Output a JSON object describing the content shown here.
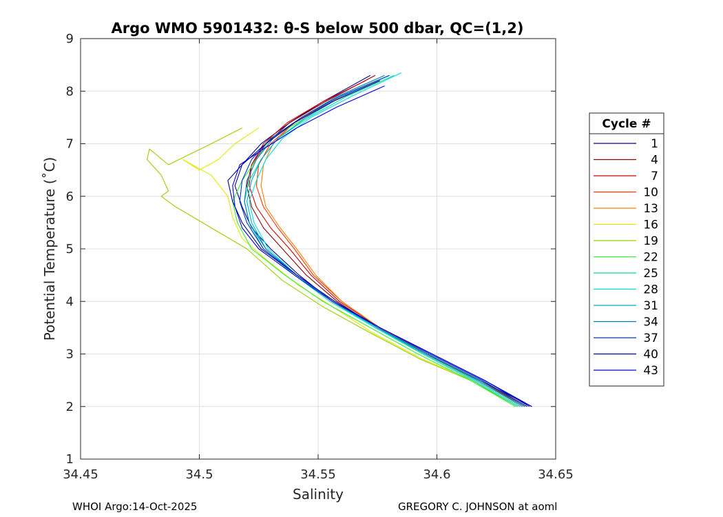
{
  "chart_data": {
    "type": "line",
    "title": "Argo WMO 5901432: θ-S below 500 dbar,  QC=(1,2)",
    "xlabel": "Salinity",
    "ylabel": "Potential Temperature (˚C)",
    "xlim": [
      34.45,
      34.65
    ],
    "ylim": [
      1,
      9
    ],
    "x_ticks": [
      "34.45",
      "34.5",
      "34.55",
      "34.6",
      "34.65"
    ],
    "y_ticks": [
      "1",
      "2",
      "3",
      "4",
      "5",
      "6",
      "7",
      "8",
      "9"
    ],
    "grid": true,
    "legend": {
      "title": "Cycle #",
      "position": "outside-right",
      "entries": [
        {
          "label": "1",
          "color": "#00008f"
        },
        {
          "label": "4",
          "color": "#8b0000"
        },
        {
          "label": "7",
          "color": "#cc0000"
        },
        {
          "label": "10",
          "color": "#ff3300"
        },
        {
          "label": "13",
          "color": "#ff7f00"
        },
        {
          "label": "16",
          "color": "#e6e600"
        },
        {
          "label": "19",
          "color": "#9acd00"
        },
        {
          "label": "22",
          "color": "#33ee33"
        },
        {
          "label": "25",
          "color": "#00ddaa"
        },
        {
          "label": "28",
          "color": "#00dddd"
        },
        {
          "label": "31",
          "color": "#00aacc"
        },
        {
          "label": "34",
          "color": "#0077bb"
        },
        {
          "label": "37",
          "color": "#0033cc"
        },
        {
          "label": "40",
          "color": "#000099"
        },
        {
          "label": "43",
          "color": "#0000dd"
        }
      ]
    },
    "series": [
      {
        "name": "1",
        "color": "#00008f",
        "points": [
          [
            34.572,
            8.3
          ],
          [
            34.552,
            7.8
          ],
          [
            34.538,
            7.4
          ],
          [
            34.526,
            7.0
          ],
          [
            34.518,
            6.6
          ],
          [
            34.515,
            6.2
          ],
          [
            34.518,
            5.8
          ],
          [
            34.522,
            5.4
          ],
          [
            34.53,
            5.0
          ],
          [
            34.542,
            4.5
          ],
          [
            34.556,
            4.0
          ],
          [
            34.574,
            3.5
          ],
          [
            34.595,
            3.0
          ],
          [
            34.618,
            2.5
          ],
          [
            34.64,
            2.0
          ]
        ]
      },
      {
        "name": "4",
        "color": "#8b0000",
        "points": [
          [
            34.574,
            8.3
          ],
          [
            34.553,
            7.8
          ],
          [
            34.538,
            7.4
          ],
          [
            34.528,
            7.0
          ],
          [
            34.522,
            6.6
          ],
          [
            34.52,
            6.2
          ],
          [
            34.522,
            5.8
          ],
          [
            34.527,
            5.4
          ],
          [
            34.535,
            5.0
          ],
          [
            34.545,
            4.5
          ],
          [
            34.558,
            4.0
          ],
          [
            34.575,
            3.5
          ],
          [
            34.596,
            3.0
          ],
          [
            34.618,
            2.5
          ],
          [
            34.638,
            2.0
          ]
        ]
      },
      {
        "name": "7",
        "color": "#cc0000",
        "points": [
          [
            34.57,
            8.2
          ],
          [
            34.552,
            7.8
          ],
          [
            34.537,
            7.4
          ],
          [
            34.527,
            7.0
          ],
          [
            34.522,
            6.6
          ],
          [
            34.521,
            6.2
          ],
          [
            34.524,
            5.8
          ],
          [
            34.53,
            5.4
          ],
          [
            34.538,
            5.0
          ],
          [
            34.547,
            4.5
          ],
          [
            34.559,
            4.0
          ],
          [
            34.576,
            3.5
          ],
          [
            34.596,
            3.0
          ],
          [
            34.617,
            2.5
          ],
          [
            34.637,
            2.0
          ]
        ]
      },
      {
        "name": "10",
        "color": "#ff3300",
        "points": [
          [
            34.576,
            8.2
          ],
          [
            34.556,
            7.8
          ],
          [
            34.54,
            7.4
          ],
          [
            34.53,
            7.0
          ],
          [
            34.525,
            6.6
          ],
          [
            34.524,
            6.2
          ],
          [
            34.527,
            5.8
          ],
          [
            34.533,
            5.4
          ],
          [
            34.54,
            5.0
          ],
          [
            34.548,
            4.5
          ],
          [
            34.56,
            4.0
          ],
          [
            34.576,
            3.5
          ],
          [
            34.596,
            3.0
          ],
          [
            34.617,
            2.5
          ],
          [
            34.636,
            2.0
          ]
        ]
      },
      {
        "name": "13",
        "color": "#ff7f00",
        "points": [
          [
            34.575,
            8.2
          ],
          [
            34.555,
            7.8
          ],
          [
            34.54,
            7.4
          ],
          [
            34.531,
            7.0
          ],
          [
            34.527,
            6.6
          ],
          [
            34.526,
            6.2
          ],
          [
            34.528,
            5.8
          ],
          [
            34.534,
            5.4
          ],
          [
            34.541,
            5.0
          ],
          [
            34.549,
            4.5
          ],
          [
            34.56,
            4.0
          ],
          [
            34.576,
            3.5
          ],
          [
            34.595,
            3.0
          ],
          [
            34.616,
            2.5
          ],
          [
            34.635,
            2.0
          ]
        ]
      },
      {
        "name": "16",
        "color": "#e6e600",
        "points": [
          [
            34.525,
            7.3
          ],
          [
            34.515,
            7.0
          ],
          [
            34.508,
            6.7
          ],
          [
            34.5,
            6.5
          ],
          [
            34.493,
            6.7
          ],
          [
            34.505,
            6.4
          ],
          [
            34.512,
            6.0
          ],
          [
            34.514,
            5.6
          ],
          [
            34.518,
            5.2
          ],
          [
            34.528,
            4.8
          ],
          [
            34.542,
            4.3
          ],
          [
            34.556,
            3.9
          ],
          [
            34.573,
            3.4
          ],
          [
            34.594,
            2.9
          ],
          [
            34.615,
            2.5
          ],
          [
            34.634,
            2.0
          ]
        ]
      },
      {
        "name": "19",
        "color": "#9acd00",
        "points": [
          [
            34.518,
            7.3
          ],
          [
            34.505,
            7.0
          ],
          [
            34.487,
            6.6
          ],
          [
            34.479,
            6.9
          ],
          [
            34.478,
            6.7
          ],
          [
            34.484,
            6.4
          ],
          [
            34.487,
            6.1
          ],
          [
            34.484,
            6.0
          ],
          [
            34.49,
            5.8
          ],
          [
            34.505,
            5.4
          ],
          [
            34.52,
            5.0
          ],
          [
            34.535,
            4.4
          ],
          [
            34.552,
            3.9
          ],
          [
            34.572,
            3.4
          ],
          [
            34.593,
            2.9
          ],
          [
            34.614,
            2.5
          ],
          [
            34.634,
            2.0
          ]
        ]
      },
      {
        "name": "22",
        "color": "#33ee33",
        "points": [
          [
            34.58,
            8.3
          ],
          [
            34.56,
            7.9
          ],
          [
            34.545,
            7.5
          ],
          [
            34.53,
            7.1
          ],
          [
            34.524,
            6.7
          ],
          [
            34.518,
            6.3
          ],
          [
            34.514,
            5.9
          ],
          [
            34.516,
            5.5
          ],
          [
            34.522,
            5.0
          ],
          [
            34.536,
            4.5
          ],
          [
            34.552,
            4.0
          ],
          [
            34.572,
            3.5
          ],
          [
            34.592,
            3.0
          ],
          [
            34.614,
            2.5
          ],
          [
            34.633,
            2.0
          ]
        ]
      },
      {
        "name": "25",
        "color": "#00ddaa",
        "points": [
          [
            34.582,
            8.3
          ],
          [
            34.562,
            7.9
          ],
          [
            34.546,
            7.5
          ],
          [
            34.533,
            7.1
          ],
          [
            34.526,
            6.7
          ],
          [
            34.521,
            6.3
          ],
          [
            34.519,
            5.9
          ],
          [
            34.521,
            5.5
          ],
          [
            34.527,
            5.0
          ],
          [
            34.54,
            4.5
          ],
          [
            34.555,
            4.0
          ],
          [
            34.574,
            3.5
          ],
          [
            34.594,
            3.0
          ],
          [
            34.615,
            2.5
          ],
          [
            34.634,
            2.0
          ]
        ]
      },
      {
        "name": "28",
        "color": "#00dddd",
        "points": [
          [
            34.585,
            8.35
          ],
          [
            34.564,
            7.9
          ],
          [
            34.547,
            7.5
          ],
          [
            34.535,
            7.1
          ],
          [
            34.528,
            6.7
          ],
          [
            34.524,
            6.3
          ],
          [
            34.521,
            5.9
          ],
          [
            34.523,
            5.5
          ],
          [
            34.529,
            5.0
          ],
          [
            34.541,
            4.5
          ],
          [
            34.556,
            4.0
          ],
          [
            34.574,
            3.5
          ],
          [
            34.595,
            3.0
          ],
          [
            34.616,
            2.5
          ],
          [
            34.635,
            2.0
          ]
        ]
      },
      {
        "name": "31",
        "color": "#00aacc",
        "points": [
          [
            34.58,
            8.3
          ],
          [
            34.56,
            7.9
          ],
          [
            34.545,
            7.5
          ],
          [
            34.533,
            7.1
          ],
          [
            34.526,
            6.7
          ],
          [
            34.522,
            6.3
          ],
          [
            34.52,
            5.9
          ],
          [
            34.522,
            5.5
          ],
          [
            34.528,
            5.0
          ],
          [
            34.541,
            4.5
          ],
          [
            34.556,
            4.0
          ],
          [
            34.575,
            3.5
          ],
          [
            34.595,
            3.0
          ],
          [
            34.617,
            2.5
          ],
          [
            34.636,
            2.0
          ]
        ]
      },
      {
        "name": "34",
        "color": "#0077bb",
        "points": [
          [
            34.578,
            8.3
          ],
          [
            34.558,
            7.9
          ],
          [
            34.543,
            7.5
          ],
          [
            34.531,
            7.1
          ],
          [
            34.524,
            6.7
          ],
          [
            34.52,
            6.3
          ],
          [
            34.519,
            5.9
          ],
          [
            34.521,
            5.5
          ],
          [
            34.528,
            5.0
          ],
          [
            34.541,
            4.5
          ],
          [
            34.557,
            4.0
          ],
          [
            34.575,
            3.5
          ],
          [
            34.596,
            3.0
          ],
          [
            34.618,
            2.5
          ],
          [
            34.637,
            2.0
          ]
        ]
      },
      {
        "name": "37",
        "color": "#0033cc",
        "points": [
          [
            34.58,
            8.3
          ],
          [
            34.559,
            7.9
          ],
          [
            34.543,
            7.5
          ],
          [
            34.53,
            7.1
          ],
          [
            34.522,
            6.7
          ],
          [
            34.518,
            6.3
          ],
          [
            34.517,
            5.9
          ],
          [
            34.52,
            5.5
          ],
          [
            34.527,
            5.0
          ],
          [
            34.541,
            4.5
          ],
          [
            34.557,
            4.0
          ],
          [
            34.576,
            3.5
          ],
          [
            34.597,
            3.0
          ],
          [
            34.619,
            2.5
          ],
          [
            34.638,
            2.0
          ]
        ]
      },
      {
        "name": "40",
        "color": "#000099",
        "points": [
          [
            34.576,
            8.2
          ],
          [
            34.556,
            7.8
          ],
          [
            34.54,
            7.4
          ],
          [
            34.528,
            7.0
          ],
          [
            34.518,
            6.6
          ],
          [
            34.512,
            6.3
          ],
          [
            34.514,
            5.9
          ],
          [
            34.518,
            5.5
          ],
          [
            34.526,
            5.0
          ],
          [
            34.541,
            4.5
          ],
          [
            34.557,
            4.0
          ],
          [
            34.576,
            3.5
          ],
          [
            34.598,
            3.0
          ],
          [
            34.62,
            2.5
          ],
          [
            34.639,
            2.0
          ]
        ]
      },
      {
        "name": "43",
        "color": "#0000dd",
        "points": [
          [
            34.578,
            8.1
          ],
          [
            34.558,
            7.7
          ],
          [
            34.541,
            7.3
          ],
          [
            34.527,
            6.9
          ],
          [
            34.517,
            6.6
          ],
          [
            34.514,
            6.2
          ],
          [
            34.515,
            5.8
          ],
          [
            34.518,
            5.4
          ],
          [
            34.525,
            5.0
          ],
          [
            34.54,
            4.5
          ],
          [
            34.556,
            4.0
          ],
          [
            34.576,
            3.5
          ],
          [
            34.598,
            3.0
          ],
          [
            34.62,
            2.5
          ],
          [
            34.64,
            2.0
          ]
        ]
      }
    ]
  },
  "footer": {
    "left": "WHOI Argo:14-Oct-2025",
    "right": "GREGORY C. JOHNSON at aoml"
  }
}
